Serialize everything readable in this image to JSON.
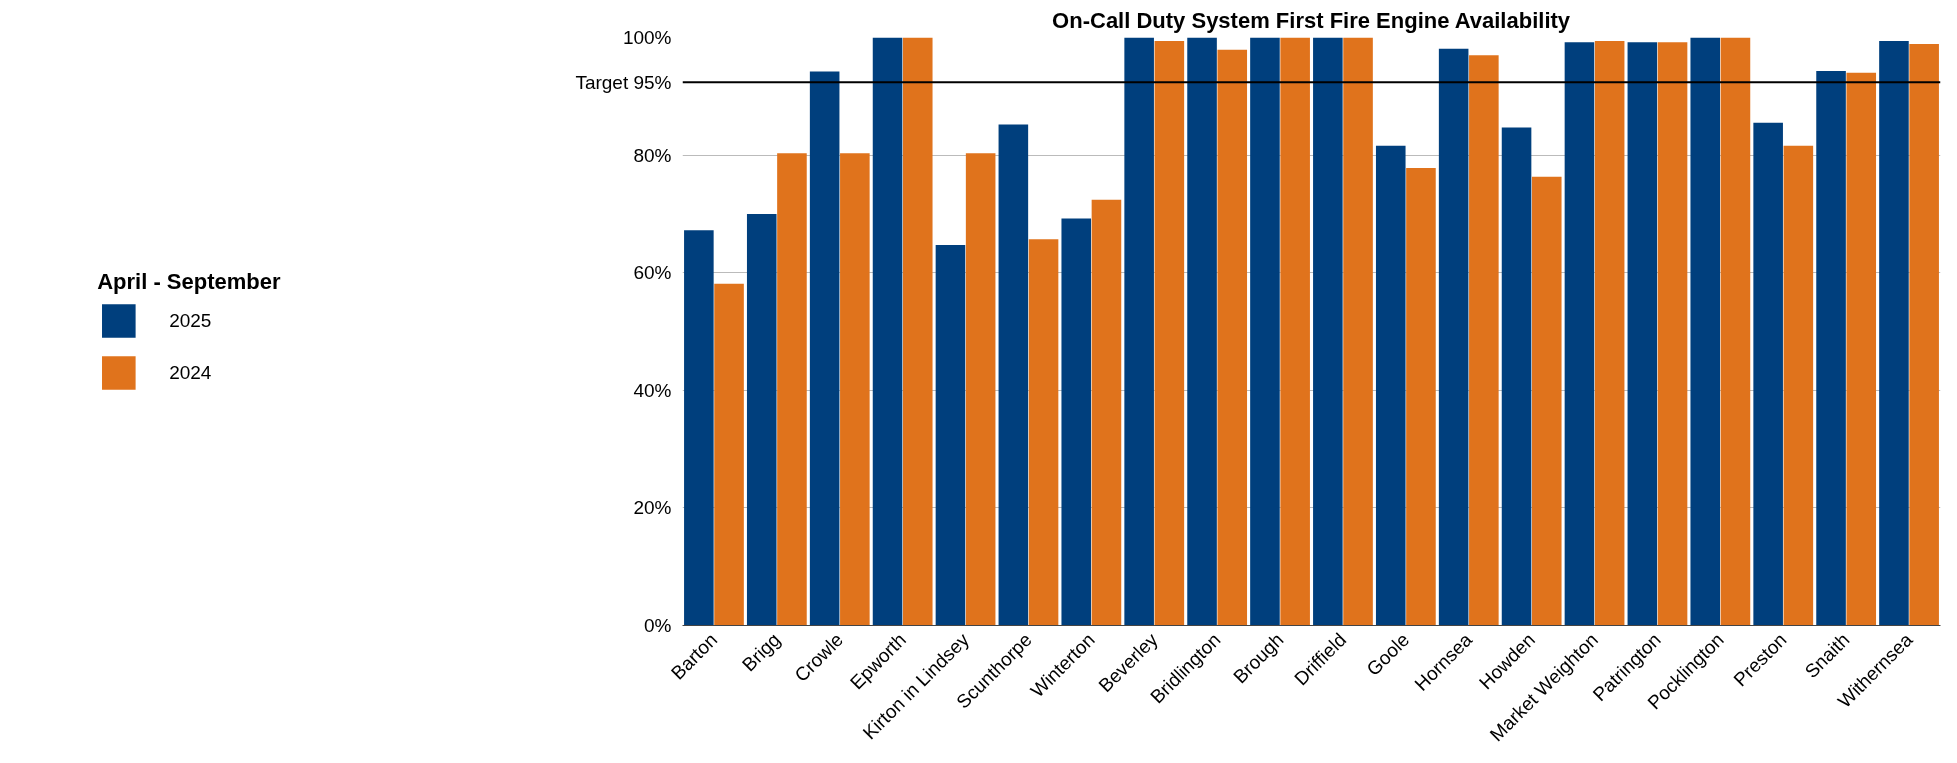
{
  "chart_data": {
    "type": "bar",
    "title": "On-Call Duty System First Fire Engine Availability",
    "legend_title": "April - September",
    "categories": [
      "Barton",
      "Brigg",
      "Crowle",
      "Epworth",
      "Kirton in Lindsey",
      "Scunthorpe",
      "Winterton",
      "Beverley",
      "Bridlington",
      "Brough",
      "Driffield",
      "Goole",
      "Hornsea",
      "Howden",
      "Market Weighton",
      "Patrington",
      "Pocklington",
      "Preston",
      "Snaith",
      "Withernsea"
    ],
    "series": [
      {
        "name": "2025",
        "color": "#003f7d",
        "values": [
          67.2,
          70.0,
          94.2,
          100,
          64.7,
          85.2,
          69.2,
          100,
          100,
          100,
          100,
          81.6,
          98.1,
          84.7,
          99.2,
          99.2,
          100,
          85.5,
          94.3,
          99.4
        ]
      },
      {
        "name": "2024",
        "color": "#e0731c",
        "values": [
          58.1,
          80.3,
          80.3,
          100,
          80.3,
          65.7,
          72.4,
          99.4,
          97.9,
          100,
          100,
          77.8,
          97.0,
          76.3,
          99.4,
          99.2,
          100,
          81.6,
          94.0,
          98.9
        ]
      }
    ],
    "ylim": [
      0,
      100
    ],
    "yticks": [
      {
        "value": 0,
        "label": "0%"
      },
      {
        "value": 20,
        "label": "20%"
      },
      {
        "value": 40,
        "label": "40%"
      },
      {
        "value": 60,
        "label": "60%"
      },
      {
        "value": 80,
        "label": "80%"
      },
      {
        "value": 100,
        "label": "100%"
      }
    ],
    "ref_lines": [
      {
        "axis": "y",
        "value": 92.4,
        "label": "Target 95%",
        "color": "#000000"
      }
    ],
    "grid": "y",
    "legend": "left"
  }
}
